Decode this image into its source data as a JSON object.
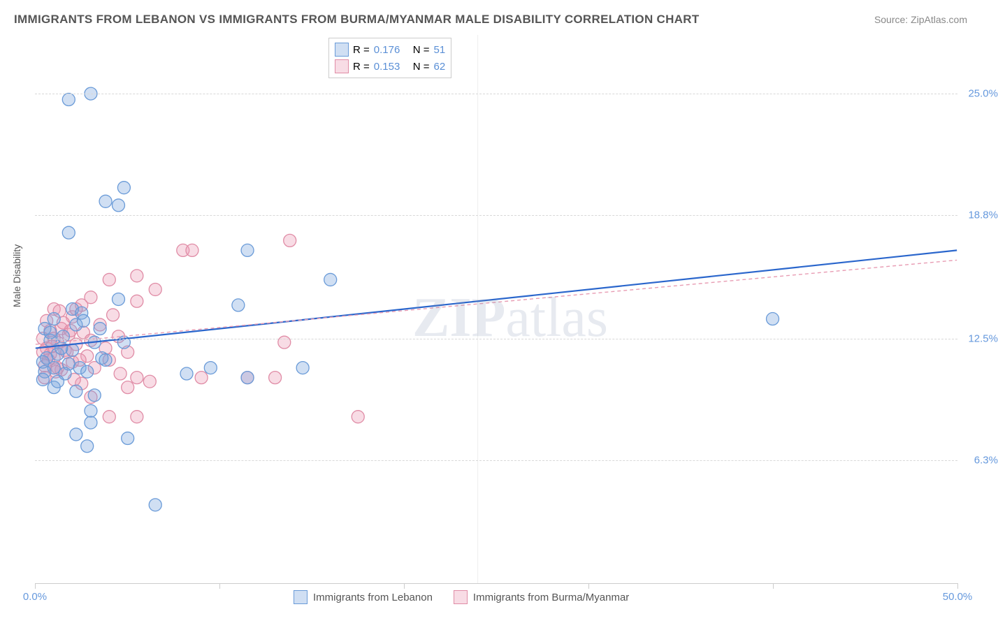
{
  "title": "IMMIGRANTS FROM LEBANON VS IMMIGRANTS FROM BURMA/MYANMAR MALE DISABILITY CORRELATION CHART",
  "source": "Source: ZipAtlas.com",
  "y_axis_label": "Male Disability",
  "watermark": "ZIPatlas",
  "chart": {
    "type": "scatter",
    "xlim": [
      0,
      50
    ],
    "ylim": [
      0,
      28
    ],
    "x_ticks": [
      0,
      10,
      20,
      30,
      40,
      50
    ],
    "x_tick_labels": {
      "0": "0.0%",
      "50": "50.0%"
    },
    "y_grid_lines": [
      6.3,
      12.5,
      18.8,
      25.0
    ],
    "y_tick_labels": [
      "6.3%",
      "12.5%",
      "18.8%",
      "25.0%"
    ],
    "background_color": "#ffffff",
    "grid_color": "#d8d8d8",
    "series": [
      {
        "name": "Immigrants from Lebanon",
        "color_fill": "rgba(120,162,220,0.35)",
        "color_stroke": "#6a9bd8",
        "marker_radius": 9,
        "R": "0.176",
        "N": "51",
        "regression": {
          "x1": 0,
          "y1": 12.0,
          "x2": 50,
          "y2": 17.0,
          "stroke": "#2a66cc",
          "width": 2.2
        },
        "points": [
          [
            3.0,
            25.0
          ],
          [
            1.8,
            24.7
          ],
          [
            4.8,
            20.2
          ],
          [
            3.8,
            19.5
          ],
          [
            4.5,
            19.3
          ],
          [
            1.8,
            17.9
          ],
          [
            11.5,
            17.0
          ],
          [
            4.5,
            14.5
          ],
          [
            11.0,
            14.2
          ],
          [
            2.0,
            14.0
          ],
          [
            2.5,
            13.8
          ],
          [
            1.0,
            13.5
          ],
          [
            2.2,
            13.2
          ],
          [
            0.5,
            13.0
          ],
          [
            3.5,
            13.0
          ],
          [
            40.0,
            13.5
          ],
          [
            1.5,
            12.6
          ],
          [
            0.8,
            12.4
          ],
          [
            3.2,
            12.3
          ],
          [
            4.8,
            12.3
          ],
          [
            2.0,
            11.9
          ],
          [
            1.2,
            11.7
          ],
          [
            0.6,
            11.5
          ],
          [
            3.6,
            11.5
          ],
          [
            0.4,
            11.3
          ],
          [
            1.8,
            11.2
          ],
          [
            1.0,
            11.0
          ],
          [
            2.4,
            11.0
          ],
          [
            0.5,
            10.8
          ],
          [
            1.6,
            10.7
          ],
          [
            9.5,
            11.0
          ],
          [
            14.5,
            11.0
          ],
          [
            0.4,
            10.4
          ],
          [
            11.5,
            10.5
          ],
          [
            2.8,
            10.8
          ],
          [
            8.2,
            10.7
          ],
          [
            1.0,
            10.0
          ],
          [
            2.2,
            9.8
          ],
          [
            3.2,
            9.6
          ],
          [
            3.0,
            8.8
          ],
          [
            3.0,
            8.2
          ],
          [
            2.2,
            7.6
          ],
          [
            5.0,
            7.4
          ],
          [
            2.8,
            7.0
          ],
          [
            6.5,
            4.0
          ],
          [
            16.0,
            15.5
          ],
          [
            1.4,
            12.0
          ],
          [
            0.8,
            12.8
          ],
          [
            2.6,
            13.4
          ],
          [
            3.8,
            11.4
          ],
          [
            1.2,
            10.3
          ]
        ]
      },
      {
        "name": "Immigrants from Burma/Myanmar",
        "color_fill": "rgba(235,155,180,0.35)",
        "color_stroke": "#e08ca6",
        "marker_radius": 9,
        "R": "0.153",
        "N": "62",
        "regression": {
          "x1": 0,
          "y1": 12.2,
          "x2": 50,
          "y2": 16.5,
          "stroke": "#e89cb3",
          "width": 1.4,
          "dash": "5,4"
        },
        "points": [
          [
            13.8,
            17.5
          ],
          [
            8.0,
            17.0
          ],
          [
            8.5,
            17.0
          ],
          [
            5.5,
            15.7
          ],
          [
            4.0,
            15.5
          ],
          [
            6.5,
            15.0
          ],
          [
            3.0,
            14.6
          ],
          [
            5.5,
            14.4
          ],
          [
            2.5,
            14.2
          ],
          [
            1.0,
            14.0
          ],
          [
            4.2,
            13.7
          ],
          [
            2.0,
            13.6
          ],
          [
            0.6,
            13.4
          ],
          [
            3.5,
            13.2
          ],
          [
            1.4,
            13.0
          ],
          [
            0.8,
            12.9
          ],
          [
            2.6,
            12.8
          ],
          [
            1.8,
            12.7
          ],
          [
            4.5,
            12.6
          ],
          [
            0.4,
            12.5
          ],
          [
            3.0,
            12.4
          ],
          [
            1.2,
            12.3
          ],
          [
            13.5,
            12.3
          ],
          [
            2.2,
            12.2
          ],
          [
            0.6,
            12.0
          ],
          [
            3.8,
            12.0
          ],
          [
            1.6,
            11.9
          ],
          [
            5.0,
            11.8
          ],
          [
            0.8,
            11.7
          ],
          [
            2.8,
            11.6
          ],
          [
            1.0,
            11.5
          ],
          [
            4.0,
            11.4
          ],
          [
            2.0,
            11.3
          ],
          [
            0.5,
            11.1
          ],
          [
            3.2,
            11.0
          ],
          [
            1.4,
            10.9
          ],
          [
            5.5,
            10.5
          ],
          [
            4.6,
            10.7
          ],
          [
            9.0,
            10.5
          ],
          [
            11.5,
            10.5
          ],
          [
            13.0,
            10.5
          ],
          [
            2.5,
            10.2
          ],
          [
            6.2,
            10.3
          ],
          [
            5.0,
            10.0
          ],
          [
            3.0,
            9.5
          ],
          [
            4.0,
            8.5
          ],
          [
            5.5,
            8.5
          ],
          [
            17.5,
            8.5
          ],
          [
            1.2,
            11.0
          ],
          [
            0.7,
            11.4
          ],
          [
            1.0,
            12.5
          ],
          [
            1.5,
            13.3
          ],
          [
            2.2,
            14.0
          ],
          [
            0.9,
            12.1
          ],
          [
            1.7,
            11.8
          ],
          [
            2.4,
            11.4
          ],
          [
            0.5,
            10.5
          ],
          [
            1.1,
            10.8
          ],
          [
            1.9,
            12.9
          ],
          [
            0.4,
            11.8
          ],
          [
            1.3,
            13.9
          ],
          [
            2.1,
            10.4
          ]
        ]
      }
    ],
    "legend_labels": {
      "R_label": "R =",
      "N_label": "N ="
    }
  }
}
